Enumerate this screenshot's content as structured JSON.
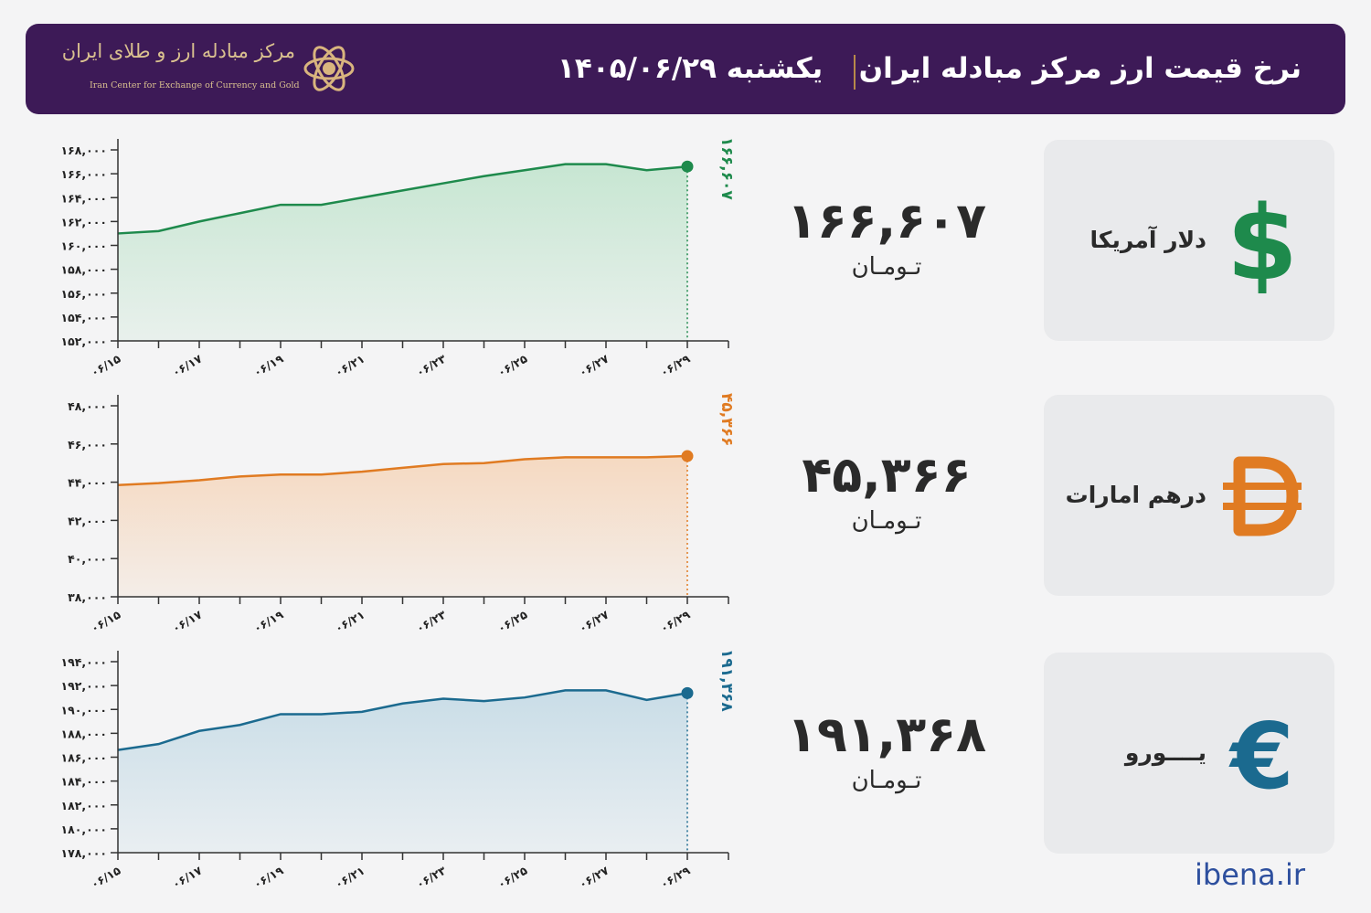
{
  "header": {
    "title": "نرخ قیمت ارز مرکز مبادله ایران",
    "date": "یکشنبه  ۱۴۰۵/۰۶/۲۹",
    "logo_fa": "مرکز مبادله ارز و طلای ایران",
    "logo_en": "Iran Center for Exchange of Currency and Gold"
  },
  "currencies": [
    {
      "name": "دلار آمریکا",
      "price": "۱۶۶,۶۰۷",
      "unit": "تـومـان",
      "icon": "dollar-sign-icon"
    },
    {
      "name": "درهم امارات",
      "price": "۴۵,۳۶۶",
      "unit": "تـومـان",
      "icon": "dirham-sign-icon"
    },
    {
      "name": "یــــورو",
      "price": "۱۹۱,۳۶۸",
      "unit": "تـومـان",
      "icon": "euro-sign-icon"
    }
  ],
  "footer": {
    "site": "ibena.ir"
  },
  "chart_data": [
    {
      "type": "area",
      "series_color": "#1e8a4c",
      "fill_color": "#c7e6d2",
      "x": [
        "۰۶/۱۵",
        "۰۶/۱۶",
        "۰۶/۱۷",
        "۰۶/۱۸",
        "۰۶/۱۹",
        "۰۶/۲۰",
        "۰۶/۲۱",
        "۰۶/۲۲",
        "۰۶/۲۳",
        "۰۶/۲۴",
        "۰۶/۲۵",
        "۰۶/۲۶",
        "۰۶/۲۷",
        "۰۶/۲۸",
        "۰۶/۲۹"
      ],
      "x_tick_labels": [
        "۰۶/۱۵",
        "۰۶/۱۷",
        "۰۶/۱۹",
        "۰۶/۲۱",
        "۰۶/۲۳",
        "۰۶/۲۵",
        "۰۶/۲۷",
        "۰۶/۲۹"
      ],
      "values": [
        161000,
        161200,
        162000,
        162700,
        163400,
        163400,
        164000,
        164600,
        165200,
        165800,
        166300,
        166800,
        166800,
        166300,
        166607
      ],
      "ylim": [
        152000,
        168000
      ],
      "y_ticks": [
        152000,
        154000,
        156000,
        158000,
        160000,
        162000,
        164000,
        166000,
        168000
      ],
      "y_tick_labels": [
        "۱۵۲,۰۰۰",
        "۱۵۴,۰۰۰",
        "۱۵۶,۰۰۰",
        "۱۵۸,۰۰۰",
        "۱۶۰,۰۰۰",
        "۱۶۲,۰۰۰",
        "۱۶۴,۰۰۰",
        "۱۶۶,۰۰۰",
        "۱۶۸,۰۰۰"
      ],
      "last_label": "۱۶۶,۶۰۷"
    },
    {
      "type": "area",
      "series_color": "#e07b22",
      "fill_color": "#f5d9c1",
      "x": [
        "۰۶/۱۵",
        "۰۶/۱۶",
        "۰۶/۱۷",
        "۰۶/۱۸",
        "۰۶/۱۹",
        "۰۶/۲۰",
        "۰۶/۲۱",
        "۰۶/۲۲",
        "۰۶/۲۳",
        "۰۶/۲۴",
        "۰۶/۲۵",
        "۰۶/۲۶",
        "۰۶/۲۷",
        "۰۶/۲۸",
        "۰۶/۲۹"
      ],
      "x_tick_labels": [
        "۰۶/۱۵",
        "۰۶/۱۷",
        "۰۶/۱۹",
        "۰۶/۲۱",
        "۰۶/۲۳",
        "۰۶/۲۵",
        "۰۶/۲۷",
        "۰۶/۲۹"
      ],
      "values": [
        43850,
        43950,
        44100,
        44300,
        44400,
        44400,
        44550,
        44750,
        44950,
        45000,
        45200,
        45300,
        45300,
        45300,
        45366
      ],
      "ylim": [
        38000,
        48000
      ],
      "y_ticks": [
        38000,
        40000,
        42000,
        44000,
        46000,
        48000
      ],
      "y_tick_labels": [
        "۳۸,۰۰۰",
        "۴۰,۰۰۰",
        "۴۲,۰۰۰",
        "۴۴,۰۰۰",
        "۴۶,۰۰۰",
        "۴۸,۰۰۰"
      ],
      "last_label": "۴۵,۳۶۶"
    },
    {
      "type": "area",
      "series_color": "#1b6a8f",
      "fill_color": "#c9dde7",
      "x": [
        "۰۶/۱۵",
        "۰۶/۱۶",
        "۰۶/۱۷",
        "۰۶/۱۸",
        "۰۶/۱۹",
        "۰۶/۲۰",
        "۰۶/۲۱",
        "۰۶/۲۲",
        "۰۶/۲۳",
        "۰۶/۲۴",
        "۰۶/۲۵",
        "۰۶/۲۶",
        "۰۶/۲۷",
        "۰۶/۲۸",
        "۰۶/۲۹"
      ],
      "x_tick_labels": [
        "۰۶/۱۵",
        "۰۶/۱۷",
        "۰۶/۱۹",
        "۰۶/۲۱",
        "۰۶/۲۳",
        "۰۶/۲۵",
        "۰۶/۲۷",
        "۰۶/۲۹"
      ],
      "values": [
        186600,
        187100,
        188200,
        188700,
        189600,
        189600,
        189800,
        190500,
        190900,
        190700,
        191000,
        191600,
        191600,
        190800,
        191368
      ],
      "ylim": [
        178000,
        194000
      ],
      "y_ticks": [
        178000,
        180000,
        182000,
        184000,
        186000,
        188000,
        190000,
        192000,
        194000
      ],
      "y_tick_labels": [
        "۱۷۸,۰۰۰",
        "۱۸۰,۰۰۰",
        "۱۸۲,۰۰۰",
        "۱۸۴,۰۰۰",
        "۱۸۶,۰۰۰",
        "۱۸۸,۰۰۰",
        "۱۹۰,۰۰۰",
        "۱۹۲,۰۰۰",
        "۱۹۴,۰۰۰"
      ],
      "last_label": "۱۹۱,۳۶۸"
    }
  ]
}
